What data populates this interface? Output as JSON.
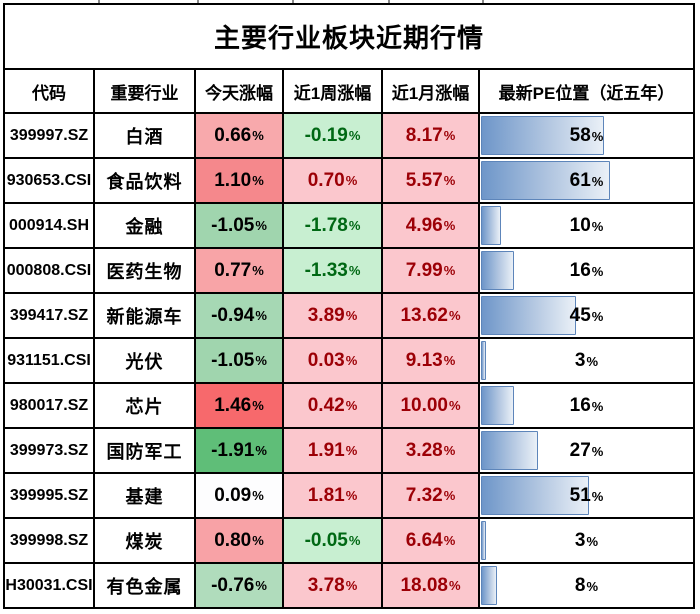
{
  "table": {
    "title": "主要行业板块近期行情",
    "columns": [
      "代码",
      "重要行业",
      "今天涨幅",
      "近1周涨幅",
      "近1月涨幅",
      "最新PE位置（近五年）"
    ],
    "rows": [
      {
        "code": "399997.SZ",
        "industry": "白酒",
        "today": "0.66%",
        "today_bg": "#F8A9AC",
        "week": "-0.19%",
        "month": "8.17%",
        "pe_label": "58%",
        "pe_value": 58
      },
      {
        "code": "930653.CSI",
        "industry": "食品饮料",
        "today": "1.10%",
        "today_bg": "#F5888C",
        "week": "0.70%",
        "month": "5.57%",
        "pe_label": "61%",
        "pe_value": 61
      },
      {
        "code": "000914.SH",
        "industry": "金融",
        "today": "-1.05%",
        "today_bg": "#A0D5AE",
        "week": "-1.78%",
        "month": "4.96%",
        "pe_label": "10%",
        "pe_value": 10
      },
      {
        "code": "000808.CSI",
        "industry": "医药生物",
        "today": "0.77%",
        "today_bg": "#F8A4A7",
        "week": "-1.33%",
        "month": "7.99%",
        "pe_label": "16%",
        "pe_value": 16
      },
      {
        "code": "399417.SZ",
        "industry": "新能源车",
        "today": "-0.94%",
        "today_bg": "#A6D8B4",
        "week": "3.89%",
        "month": "13.62%",
        "pe_label": "45%",
        "pe_value": 45
      },
      {
        "code": "931151.CSI",
        "industry": "光伏",
        "today": "-1.05%",
        "today_bg": "#A0D5AE",
        "week": "0.03%",
        "month": "9.13%",
        "pe_label": "3%",
        "pe_value": 3
      },
      {
        "code": "980017.SZ",
        "industry": "芯片",
        "today": "1.46%",
        "today_bg": "#F7696C",
        "week": "0.42%",
        "month": "10.00%",
        "pe_label": "16%",
        "pe_value": 16
      },
      {
        "code": "399973.SZ",
        "industry": "国防军工",
        "today": "-1.91%",
        "today_bg": "#5FBE78",
        "week": "1.91%",
        "month": "3.28%",
        "pe_label": "27%",
        "pe_value": 27
      },
      {
        "code": "399995.SZ",
        "industry": "基建",
        "today": "0.09%",
        "today_bg": "#FDFDFE",
        "week": "1.81%",
        "month": "7.32%",
        "pe_label": "51%",
        "pe_value": 51
      },
      {
        "code": "399998.SZ",
        "industry": "煤炭",
        "today": "0.80%",
        "today_bg": "#F8A2A6",
        "week": "-0.05%",
        "month": "6.64%",
        "pe_label": "3%",
        "pe_value": 3
      },
      {
        "code": "H30031.CSI",
        "industry": "有色金属",
        "today": "-0.76%",
        "today_bg": "#B0DCBC",
        "week": "3.78%",
        "month": "18.08%",
        "pe_label": "8%",
        "pe_value": 8
      }
    ]
  },
  "styles": {
    "grid_line": "#000000",
    "cell_bg": "#FFFFFF",
    "positive_bg": "#FBC7CD",
    "positive_text": "#9C0006",
    "negative_bg": "#C8EFD1",
    "negative_text": "#006814",
    "bar_fill_from": "#6E96C9",
    "bar_fill_to": "#EAF0F7",
    "bar_border": "#5D85BA"
  },
  "chart_data": {
    "type": "table",
    "title": "主要行业板块近期行情",
    "columns": [
      "代码",
      "重要行业",
      "今天涨幅",
      "近1周涨幅",
      "近1月涨幅",
      "最新PE位置（近五年）"
    ],
    "rows": [
      [
        "399997.SZ",
        "白酒",
        "0.66%",
        "-0.19%",
        "8.17%",
        "58%"
      ],
      [
        "930653.CSI",
        "食品饮料",
        "1.10%",
        "0.70%",
        "5.57%",
        "61%"
      ],
      [
        "000914.SH",
        "金融",
        "-1.05%",
        "-1.78%",
        "4.96%",
        "10%"
      ],
      [
        "000808.CSI",
        "医药生物",
        "0.77%",
        "-1.33%",
        "7.99%",
        "16%"
      ],
      [
        "399417.SZ",
        "新能源车",
        "-0.94%",
        "3.89%",
        "13.62%",
        "45%"
      ],
      [
        "931151.CSI",
        "光伏",
        "-1.05%",
        "0.03%",
        "9.13%",
        "3%"
      ],
      [
        "980017.SZ",
        "芯片",
        "1.46%",
        "0.42%",
        "10.00%",
        "16%"
      ],
      [
        "399973.SZ",
        "国防军工",
        "-1.91%",
        "1.91%",
        "3.28%",
        "27%"
      ],
      [
        "399995.SZ",
        "基建",
        "0.09%",
        "1.81%",
        "7.32%",
        "51%"
      ],
      [
        "399998.SZ",
        "煤炭",
        "0.80%",
        "-0.05%",
        "6.64%",
        "3%"
      ],
      [
        "H30031.CSI",
        "有色金属",
        "-0.76%",
        "3.78%",
        "18.08%",
        "8%"
      ]
    ],
    "notes": {
      "today_column_format": "red-white-green color scale background, black text",
      "week_month_column_format": "pink bg / dark-red text for positive, light-green bg / dark-green text for negative",
      "pe_column_format": "blue gradient data bar, length proportional to percent of 5-year PE range"
    }
  }
}
